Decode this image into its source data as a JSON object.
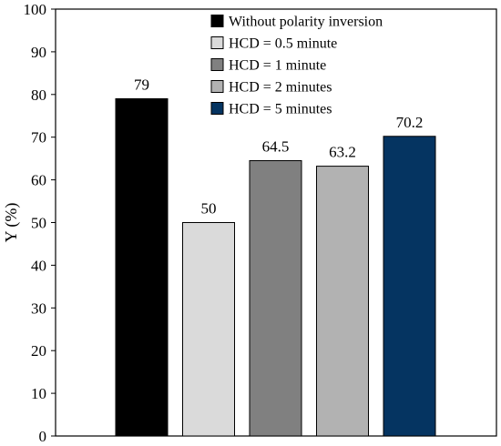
{
  "chart_data": {
    "type": "bar",
    "title": "",
    "xlabel": "",
    "ylabel": "Y (%)",
    "ylim": [
      0,
      100
    ],
    "yticks": [
      0,
      10,
      20,
      30,
      40,
      50,
      60,
      70,
      80,
      90,
      100
    ],
    "grid": false,
    "legend_position": "top-right",
    "series": [
      {
        "name": "Without polarity inversion",
        "value": 79,
        "label": "79",
        "color": "#000000"
      },
      {
        "name": "HCD = 0.5 minute",
        "value": 50,
        "label": "50",
        "color": "#dadada"
      },
      {
        "name": "HCD = 1 minute",
        "value": 64.5,
        "label": "64.5",
        "color": "#808080"
      },
      {
        "name": "HCD = 2 minutes",
        "value": 63.2,
        "label": "63.2",
        "color": "#b2b2b2"
      },
      {
        "name": "HCD = 5 minutes",
        "value": 70.2,
        "label": "70.2",
        "color": "#053461"
      }
    ]
  }
}
